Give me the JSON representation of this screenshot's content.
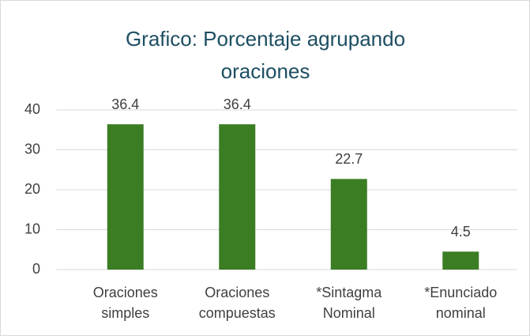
{
  "chart_data": {
    "type": "bar",
    "title": "Grafico: Porcentaje agrupando oraciones",
    "categories": [
      "Oraciones simples",
      "Oraciones compuestas",
      "*Sintagma Nominal",
      "*Enunciado nominal"
    ],
    "values": [
      36.4,
      36.4,
      22.7,
      4.5
    ],
    "color": "#3b7d23",
    "ylim": [
      0,
      40
    ],
    "yticks": [
      0,
      10,
      20,
      30,
      40
    ],
    "grid": true
  }
}
